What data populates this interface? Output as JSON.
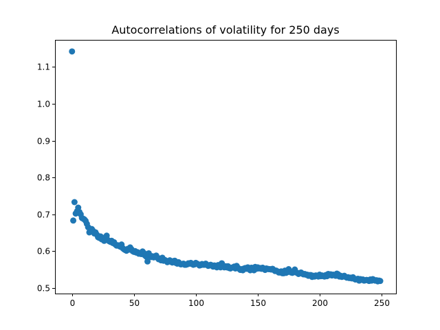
{
  "chart_data": {
    "type": "scatter",
    "title": "Autocorrelations of volatility for 250 days",
    "xlabel": "",
    "ylabel": "",
    "xlim": [
      -13.75,
      261.75
    ],
    "ylim": [
      0.4848,
      1.1734
    ],
    "x_ticks": [
      0,
      50,
      100,
      150,
      200,
      250
    ],
    "y_ticks": [
      0.5,
      0.6,
      0.7,
      0.8,
      0.9,
      1.0,
      1.1
    ],
    "grid": false,
    "marker_color": "#1f77b4",
    "series": [
      {
        "values_by_lag": [
          1.142,
          0.683,
          0.733,
          0.702,
          0.708,
          0.718,
          0.706,
          0.7,
          0.69,
          0.688,
          0.686,
          0.682,
          0.674,
          0.665,
          0.651,
          0.66,
          0.66,
          0.655,
          0.648,
          0.651,
          0.645,
          0.638,
          0.636,
          0.64,
          0.632,
          0.633,
          0.628,
          0.638,
          0.642,
          0.63,
          0.627,
          0.625,
          0.628,
          0.622,
          0.624,
          0.618,
          0.615,
          0.616,
          0.614,
          0.612,
          0.618,
          0.608,
          0.605,
          0.603,
          0.601,
          0.606,
          0.604,
          0.61,
          0.605,
          0.6,
          0.598,
          0.6,
          0.596,
          0.597,
          0.593,
          0.594,
          0.592,
          0.599,
          0.595,
          0.588,
          0.585,
          0.572,
          0.594,
          0.588,
          0.584,
          0.586,
          0.583,
          0.585,
          0.588,
          0.582,
          0.578,
          0.58,
          0.575,
          0.582,
          0.574,
          0.576,
          0.574,
          0.57,
          0.572,
          0.575,
          0.571,
          0.569,
          0.573,
          0.574,
          0.568,
          0.566,
          0.57,
          0.566,
          0.564,
          0.565,
          0.566,
          0.563,
          0.563,
          0.564,
          0.567,
          0.566,
          0.568,
          0.565,
          0.563,
          0.564,
          0.568,
          0.566,
          0.564,
          0.561,
          0.562,
          0.565,
          0.563,
          0.563,
          0.566,
          0.563,
          0.56,
          0.561,
          0.563,
          0.561,
          0.558,
          0.561,
          0.56,
          0.556,
          0.562,
          0.559,
          0.556,
          0.567,
          0.558,
          0.556,
          0.559,
          0.556,
          0.559,
          0.554,
          0.553,
          0.555,
          0.556,
          0.558,
          0.553,
          0.56,
          0.555,
          0.552,
          0.549,
          0.551,
          0.548,
          0.553,
          0.554,
          0.552,
          0.556,
          0.551,
          0.548,
          0.555,
          0.55,
          0.548,
          0.557,
          0.552,
          0.556,
          0.553,
          0.554,
          0.552,
          0.555,
          0.552,
          0.549,
          0.553,
          0.552,
          0.551,
          0.551,
          0.55,
          0.552,
          0.549,
          0.546,
          0.547,
          0.545,
          0.542,
          0.542,
          0.545,
          0.54,
          0.54,
          0.547,
          0.541,
          0.543,
          0.551,
          0.545,
          0.542,
          0.541,
          0.544,
          0.55,
          0.542,
          0.541,
          0.538,
          0.54,
          0.542,
          0.539,
          0.537,
          0.538,
          0.536,
          0.536,
          0.533,
          0.535,
          0.535,
          0.53,
          0.533,
          0.531,
          0.534,
          0.533,
          0.531,
          0.536,
          0.532,
          0.534,
          0.532,
          0.531,
          0.535,
          0.532,
          0.538,
          0.535,
          0.537,
          0.534,
          0.536,
          0.535,
          0.533,
          0.539,
          0.537,
          0.531,
          0.533,
          0.53,
          0.532,
          0.533,
          0.53,
          0.528,
          0.529,
          0.527,
          0.528,
          0.526,
          0.529,
          0.525,
          0.523,
          0.524,
          0.525,
          0.52,
          0.524,
          0.522,
          0.523,
          0.52,
          0.521,
          0.522,
          0.521,
          0.519,
          0.523,
          0.52,
          0.524,
          0.522,
          0.52,
          0.521,
          0.518,
          0.52,
          0.519
        ]
      }
    ]
  }
}
